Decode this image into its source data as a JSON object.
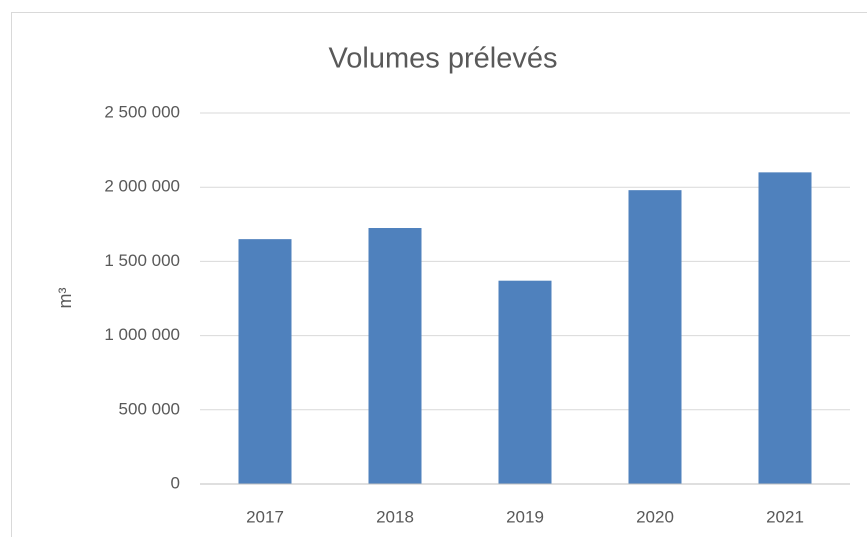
{
  "chart_data": {
    "type": "bar",
    "title": "Volumes prélevés",
    "y_label": "m³",
    "categories": [
      "2017",
      "2018",
      "2019",
      "2020",
      "2021"
    ],
    "values": [
      1650000,
      1725000,
      1370000,
      1980000,
      2100000
    ],
    "color": "#4f81bd",
    "ylim": [
      0,
      2500000
    ],
    "yticks": [
      0,
      {
        "value": 500000,
        "label": "500 000"
      },
      {
        "value": 1000000,
        "label": "1 000 000"
      },
      {
        "value": 1500000,
        "label": "1 500 000"
      },
      {
        "value": 2000000,
        "label": "2 000 000"
      },
      {
        "value": 2500000,
        "label": "2 500 000"
      }
    ],
    "grid": true
  }
}
